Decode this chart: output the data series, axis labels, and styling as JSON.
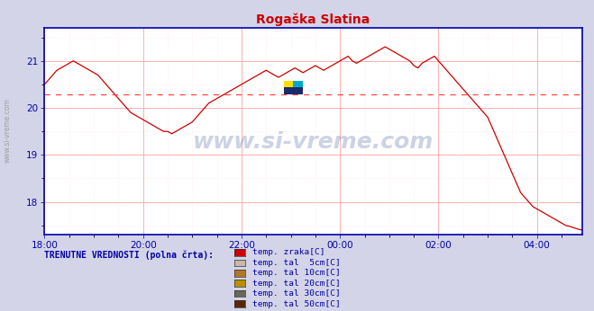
{
  "title": "Rogaška Slatina",
  "title_color": "#cc0000",
  "bg_color": "#d4d4e8",
  "plot_bg_color": "#ffffff",
  "grid_color_major": "#ffb0b0",
  "grid_color_minor": "#ffe0e0",
  "axis_color": "#0000aa",
  "line_color": "#cc0000",
  "avg_line_color": "#ff4444",
  "avg_line_value": 20.28,
  "xlabel_ticks": [
    "18:00",
    "20:00",
    "22:00",
    "00:00",
    "02:00",
    "04:00"
  ],
  "yticks": [
    18,
    19,
    20,
    21
  ],
  "ylim": [
    17.3,
    21.7
  ],
  "watermark": "www.si-vreme.com",
  "footer_text": "TRENUTNE VREDNOSTI (polna črta):",
  "legend_items": [
    {
      "label": "temp. zraka[C]",
      "color": "#cc0000"
    },
    {
      "label": "temp. tal  5cm[C]",
      "color": "#c8b8a8"
    },
    {
      "label": "temp. tal 10cm[C]",
      "color": "#b07828"
    },
    {
      "label": "temp. tal 20cm[C]",
      "color": "#b89000"
    },
    {
      "label": "temp. tal 30cm[C]",
      "color": "#686858"
    },
    {
      "label": "temp. tal 50cm[C]",
      "color": "#582808"
    }
  ],
  "temp_data": [
    20.5,
    20.6,
    20.7,
    20.8,
    20.85,
    20.9,
    20.95,
    21.0,
    20.95,
    20.9,
    20.85,
    20.8,
    20.75,
    20.7,
    20.6,
    20.5,
    20.4,
    20.3,
    20.2,
    20.1,
    20.0,
    19.9,
    19.85,
    19.8,
    19.75,
    19.7,
    19.65,
    19.6,
    19.55,
    19.5,
    19.5,
    19.45,
    19.5,
    19.55,
    19.6,
    19.65,
    19.7,
    19.8,
    19.9,
    20.0,
    20.1,
    20.15,
    20.2,
    20.25,
    20.3,
    20.35,
    20.4,
    20.45,
    20.5,
    20.55,
    20.6,
    20.65,
    20.7,
    20.75,
    20.8,
    20.75,
    20.7,
    20.65,
    20.7,
    20.75,
    20.8,
    20.85,
    20.8,
    20.75,
    20.8,
    20.85,
    20.9,
    20.85,
    20.8,
    20.85,
    20.9,
    20.95,
    21.0,
    21.05,
    21.1,
    21.0,
    20.95,
    21.0,
    21.05,
    21.1,
    21.15,
    21.2,
    21.25,
    21.3,
    21.25,
    21.2,
    21.15,
    21.1,
    21.05,
    21.0,
    20.9,
    20.85,
    20.95,
    21.0,
    21.05,
    21.1,
    21.0,
    20.9,
    20.8,
    20.7,
    20.6,
    20.5,
    20.4,
    20.3,
    20.2,
    20.1,
    20.0,
    19.9,
    19.8,
    19.6,
    19.4,
    19.2,
    19.0,
    18.8,
    18.6,
    18.4,
    18.2,
    18.1,
    18.0,
    17.9,
    17.85,
    17.8,
    17.75,
    17.7,
    17.65,
    17.6,
    17.55,
    17.5,
    17.48,
    17.45,
    17.42,
    17.4
  ]
}
